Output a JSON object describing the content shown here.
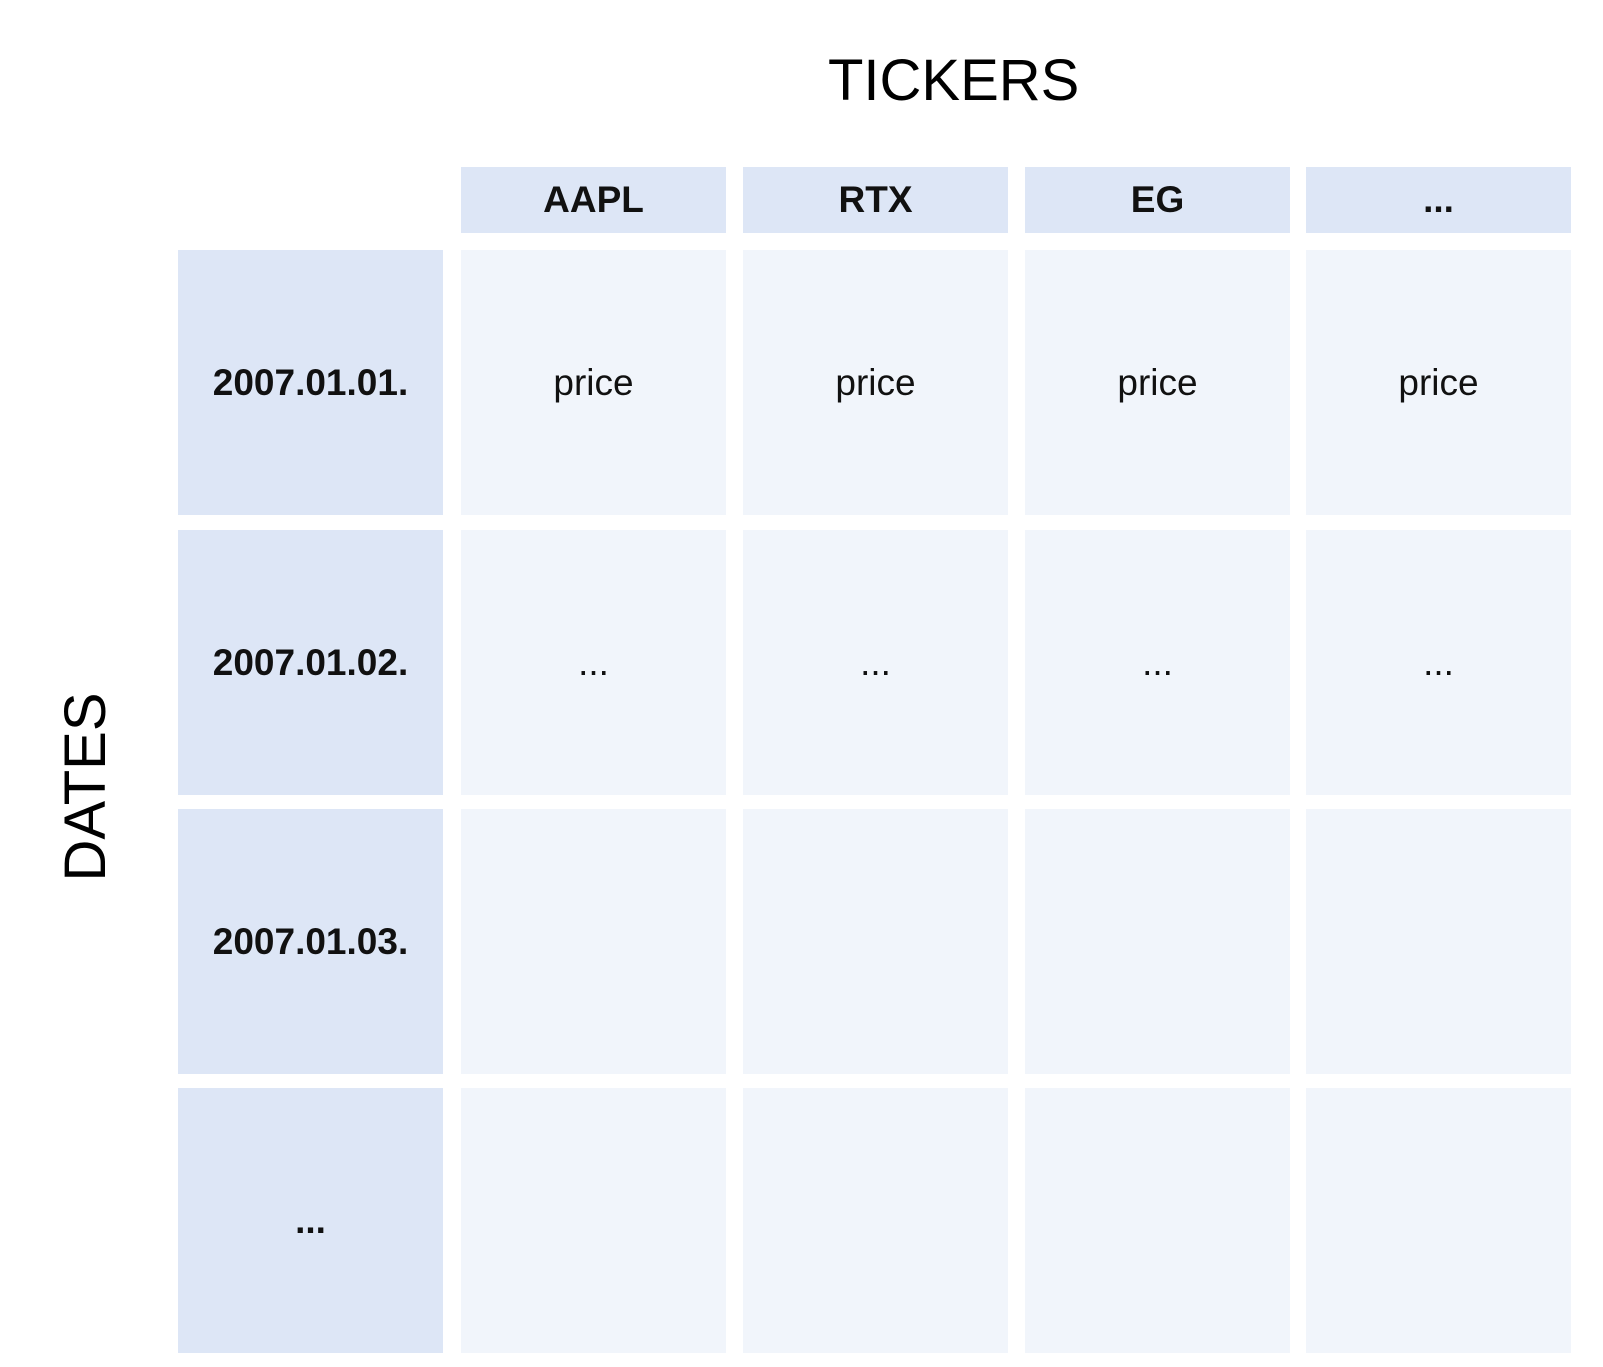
{
  "titles": {
    "columns_title": "TICKERS",
    "rows_title": "DATES"
  },
  "columns": [
    "AAPL",
    "RTX",
    "EG",
    "..."
  ],
  "rows": [
    {
      "label": "2007.01.01.",
      "cells": [
        "price",
        "price",
        "price",
        "price"
      ]
    },
    {
      "label": "2007.01.02.",
      "cells": [
        "...",
        "...",
        "...",
        "..."
      ]
    },
    {
      "label": "2007.01.03.",
      "cells": [
        "",
        "",
        "",
        ""
      ]
    },
    {
      "label": "...",
      "cells": [
        "",
        "",
        "",
        ""
      ]
    }
  ],
  "colors": {
    "header_fill": "#dde6f6",
    "cell_fill": "#f1f5fb",
    "text": "#111111"
  }
}
